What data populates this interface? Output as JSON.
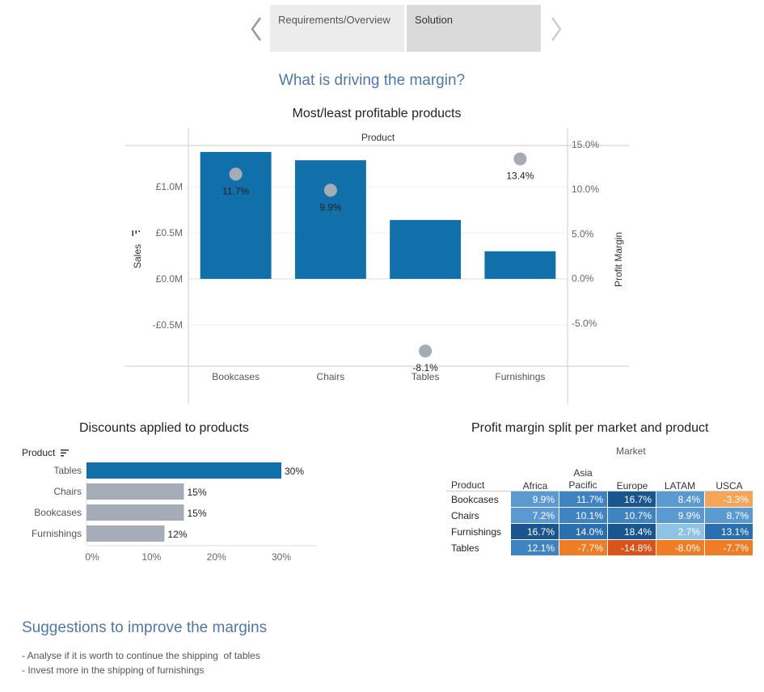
{
  "nav": {
    "tabs": [
      {
        "label": "Requirements/Overview"
      },
      {
        "label": "Solution"
      }
    ]
  },
  "heading": "What is driving the margin?",
  "chart_data": [
    {
      "type": "bar",
      "title": "Most/least profitable products",
      "top_label": "Product",
      "xlabel": "",
      "ylabel": "Sales",
      "y2label": "Profit Margin",
      "categories": [
        "Bookcases",
        "Chairs",
        "Tables",
        "Furnishings"
      ],
      "series": [
        {
          "name": "Sales",
          "axis": "left",
          "mark": "bar",
          "values": [
            1.38,
            1.29,
            0.64,
            0.3
          ]
        },
        {
          "name": "Profit Margin",
          "axis": "right",
          "mark": "circle",
          "values": [
            11.7,
            9.9,
            -8.1,
            13.4
          ],
          "labels": [
            "11.7%",
            "9.9%",
            "-8.1%",
            "13.4%"
          ]
        }
      ],
      "ylim": [
        -0.95,
        1.45
      ],
      "y2lim": [
        -9.8,
        14.9
      ],
      "yticks": [
        {
          "v": 1.0,
          "label": "£1.0M"
        },
        {
          "v": 0.5,
          "label": "£0.5M"
        },
        {
          "v": 0.0,
          "label": "£0.0M"
        },
        {
          "v": -0.5,
          "label": "-£0.5M"
        }
      ],
      "y2ticks": [
        {
          "v": 15,
          "label": "15.0%"
        },
        {
          "v": 10,
          "label": "10.0%"
        },
        {
          "v": 5,
          "label": "5.0%"
        },
        {
          "v": 0,
          "label": "0.0%"
        },
        {
          "v": -5,
          "label": "-5.0%"
        }
      ],
      "colors": {
        "bar": "#1170aa",
        "circle": "#a5acb8"
      },
      "grid": true
    },
    {
      "type": "bar",
      "orientation": "horizontal",
      "title": "Discounts applied to products",
      "ylabel": "Product",
      "categories": [
        "Tables",
        "Chairs",
        "Bookcases",
        "Furnishings"
      ],
      "values": [
        30,
        15,
        15,
        12
      ],
      "labels": [
        "30%",
        "15%",
        "15%",
        "12%"
      ],
      "xticks": [
        "0%",
        "10%",
        "20%",
        "30%"
      ],
      "xlim": [
        0,
        34
      ],
      "colors": {
        "highlight": "#1170aa",
        "default": "#a5acb8"
      }
    },
    {
      "type": "heatmap",
      "title": "Profit margin split per market and product",
      "column_header": "Market",
      "row_header": "Product",
      "columns": [
        "Africa",
        "Asia Pacific",
        "Europe",
        "LATAM",
        "USCA"
      ],
      "rows": [
        "Bookcases",
        "Chairs",
        "Furnishings",
        "Tables"
      ],
      "values": [
        [
          9.9,
          11.7,
          16.7,
          8.4,
          -3.3
        ],
        [
          7.2,
          10.1,
          10.7,
          9.9,
          8.7
        ],
        [
          16.7,
          14.0,
          18.4,
          2.7,
          13.1
        ],
        [
          12.1,
          -7.7,
          -14.8,
          -8.0,
          -7.7
        ]
      ],
      "labels": [
        [
          "9.9%",
          "11.7%",
          "16.7%",
          "8.4%",
          "-3.3%"
        ],
        [
          "7.2%",
          "10.1%",
          "10.7%",
          "9.9%",
          "8.7%"
        ],
        [
          "16.7%",
          "14.0%",
          "18.4%",
          "2.7%",
          "13.1%"
        ],
        [
          "12.1%",
          "-7.7%",
          "-14.8%",
          "-8.0%",
          "-7.7%"
        ]
      ]
    }
  ],
  "heatmap": {
    "title": "Profit margin split per market and product",
    "column_header": "Market",
    "row_header": "Product",
    "columns": [
      "Africa",
      "Asia Pacific",
      "Europe",
      "LATAM",
      "USCA"
    ]
  },
  "suggestions": {
    "title": "Suggestions to improve the margins",
    "items": [
      "- Analyse if it is worth to continue the shipping  of tables",
      "- Invest more in the shipping of furnishings"
    ]
  }
}
